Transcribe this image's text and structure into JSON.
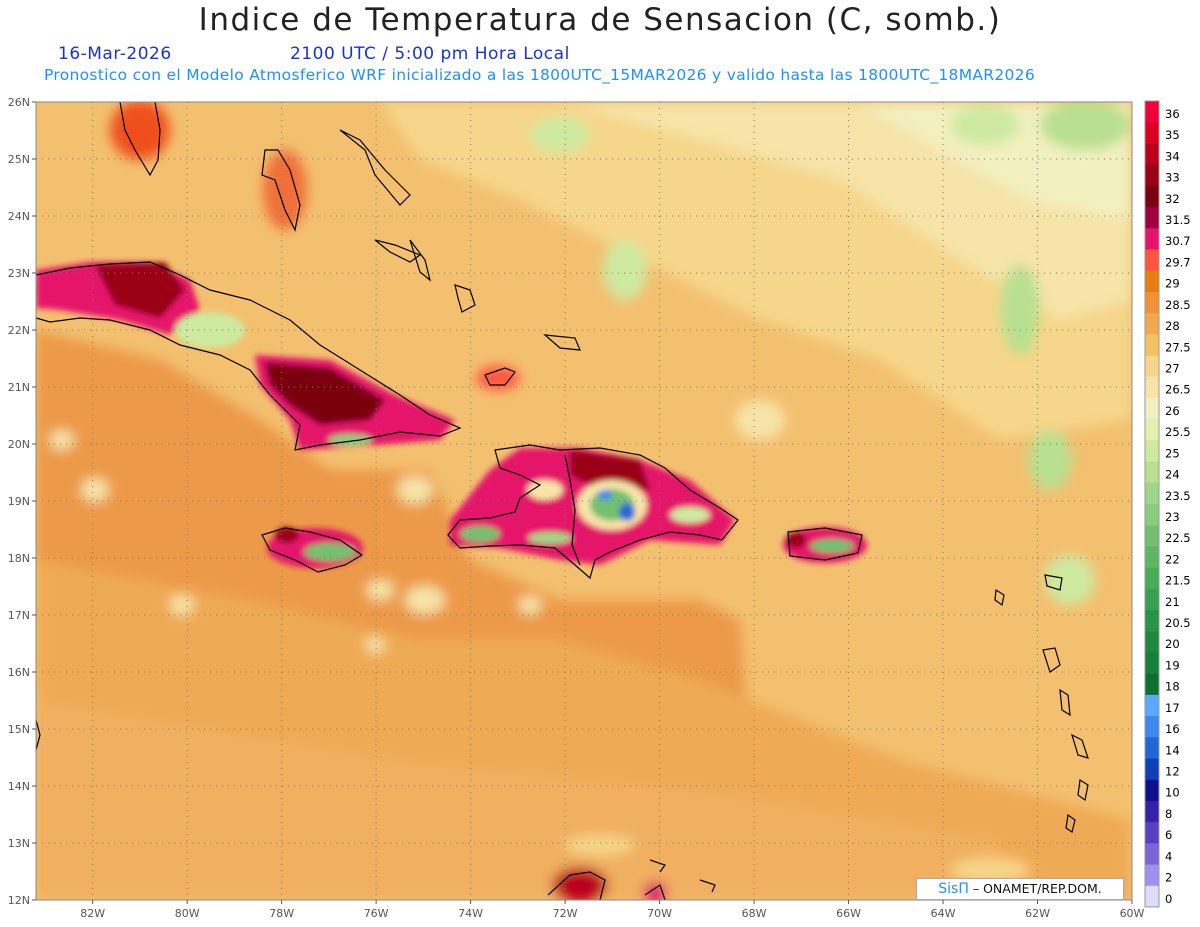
{
  "header": {
    "title": "Indice de Temperatura de Sensacion (C, somb.)",
    "date": "16-Mar-2026",
    "time": "2100 UTC / 5:00 pm Hora Local",
    "forecast_info": "Pronostico con el Modelo Atmosferico WRF inicializado a las 1800UTC_15MAR2026 y valido hasta las  1800UTC_18MAR2026"
  },
  "map": {
    "lat_labels": [
      "26N",
      "25N",
      "24N",
      "23N",
      "22N",
      "21N",
      "20N",
      "19N",
      "18N",
      "17N",
      "16N",
      "15N",
      "14N",
      "13N",
      "12N"
    ],
    "lon_labels": [
      "82W",
      "80W",
      "78W",
      "76W",
      "74W",
      "72W",
      "70W",
      "68W",
      "66W",
      "64W",
      "62W",
      "60W"
    ],
    "lat_range": [
      12,
      26
    ],
    "lon_range": [
      -83.2,
      -60
    ],
    "grid": true,
    "background_color": "#f3c070"
  },
  "legend": {
    "levels": [
      "36",
      "35",
      "34",
      "33",
      "32",
      "31.5",
      "30.7",
      "29.7",
      "29",
      "28.5",
      "28",
      "27.5",
      "27",
      "26.5",
      "26",
      "25.5",
      "25",
      "24",
      "23.5",
      "23",
      "22.5",
      "22",
      "21.5",
      "21",
      "20.5",
      "20",
      "19",
      "18",
      "17",
      "16",
      "14",
      "12",
      "10",
      "8",
      "6",
      "4",
      "2",
      "0"
    ],
    "colors": [
      "#f2003a",
      "#dd0020",
      "#bb001c",
      "#990015",
      "#7a0010",
      "#a00040",
      "#e5146a",
      "#ff5540",
      "#e87d10",
      "#ef9238",
      "#f2a850",
      "#f3c060",
      "#f6d68a",
      "#f6e4a8",
      "#f2f0c0",
      "#e6f0b0",
      "#cdeaa0",
      "#b8e090",
      "#a0d68a",
      "#8ccc80",
      "#74c070",
      "#5db662",
      "#48ac58",
      "#34a050",
      "#2a9448",
      "#1e8a40",
      "#148038",
      "#0c7030",
      "#5aa8ff",
      "#3d88f0",
      "#2068d8",
      "#0d40b8",
      "#10108a",
      "#3520a8",
      "#5a40c0",
      "#7a66d8",
      "#a090f0",
      "#dcdcf5"
    ]
  },
  "credit": {
    "brand": "SisΠ",
    "text": "– ONAMET/REP.DOM."
  }
}
